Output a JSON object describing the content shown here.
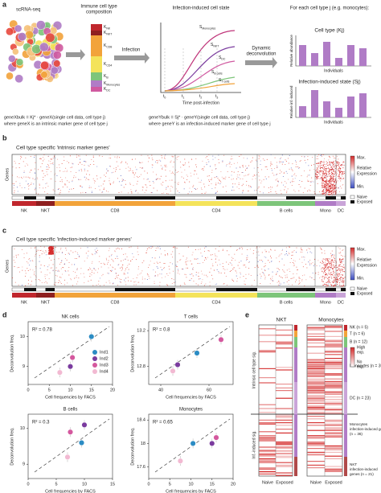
{
  "panel_labels": [
    "a",
    "b",
    "c",
    "d",
    "e"
  ],
  "panel_a": {
    "scrna": "scRNA-seq",
    "composition_title": [
      "Immune cell type",
      "composition"
    ],
    "state_title": "Infection-induced cell state",
    "per_type_title": "For each cell type j (e.g. monocytes):",
    "infection": "Infection",
    "deconv": [
      "Dynamic",
      "deconvolution"
    ],
    "k_labels": [
      {
        "main": "K",
        "sub": "NK"
      },
      {
        "main": "K",
        "sub": "NKT"
      },
      {
        "main": "K",
        "sub": "CD8"
      },
      {
        "main": "K",
        "sub": "CD4"
      },
      {
        "main": "K",
        "sub": "B"
      },
      {
        "main": "K",
        "sub": "Monocytes"
      },
      {
        "main": "K",
        "sub": "DC"
      }
    ],
    "s_labels": [
      {
        "main": "S",
        "sub": "Monocytes"
      },
      {
        "main": "S",
        "sub": "NKT"
      },
      {
        "main": "S",
        "sub": "DC"
      },
      {
        "main": "S",
        "sub": "B cells"
      },
      {
        "main": "S",
        "sub": "T cells"
      }
    ],
    "time_ticks": [
      {
        "main": "t",
        "sub": "0"
      },
      {
        "main": "t",
        "sub": "1"
      },
      {
        "main": "t",
        "sub": "2"
      },
      {
        "main": "t",
        "sub": "3"
      }
    ],
    "time_label": "Time post-infection",
    "bar1_title": "Cell type (Kj)",
    "bar1_ylabel": "Relative abundance",
    "individuals": "Individuals",
    "bar2_title": "Infection-induced state (Sj)",
    "bar2_ylabel": "Relative inf.-induced",
    "formula1": "geneXbulk = Kj* · geneX(single cell data, cell type j)",
    "formula1_note": "where geneX is an intrinsic marker gene of cell type j",
    "formula2": "geneYbulk = Sj* · geneY(single cell data, cell type j)",
    "formula2_note": "where geneY is an infection-induced marker gene of cell type j"
  },
  "panel_b": {
    "title": "Cell type specific 'intrinsic marker genes'",
    "genes": "Genes",
    "max": "Max.",
    "rel": [
      "Relative",
      "Expression"
    ],
    "min": "Min.",
    "naive": "Naive",
    "exposed": "Exposed",
    "cell_types": [
      "NK",
      "NKT",
      "CD8",
      "CD4",
      "B cells",
      "Mono",
      "DC"
    ]
  },
  "panel_c": {
    "title": "Cell type specific 'infection-induced marker genes'",
    "genes": "Genes",
    "max": "Max.",
    "rel": [
      "Relative",
      "Expression"
    ],
    "min": "Min.",
    "naive": "Naive",
    "exposed": "Exposed",
    "cell_types": [
      "NK",
      "NKT",
      "CD8",
      "CD4",
      "B cells",
      "Mono",
      "DC"
    ]
  },
  "panel_d": {
    "legend": [
      {
        "name": "Ind1",
        "color": "#2b8cc4"
      },
      {
        "name": "Ind2",
        "color": "#7a3b9e"
      },
      {
        "name": "Ind3",
        "color": "#d4589e"
      },
      {
        "name": "Ind4",
        "color": "#f2b9d2"
      }
    ]
  },
  "chart_data": [
    {
      "type": "scatter",
      "title": "NK cells",
      "annotation": "R² = 0.78",
      "xlabel": "Cell frequencies by FACS",
      "ylabel": "Deconvolution freq.",
      "x": [
        15,
        10,
        10.5,
        7.5
      ],
      "values": [
        10,
        9,
        9.3,
        8.8
      ],
      "xlim": [
        0,
        20
      ],
      "xticks": [
        0,
        5,
        10,
        15,
        20
      ],
      "ylim": [
        8.4,
        10.5
      ],
      "yticks": [
        9,
        10
      ]
    },
    {
      "type": "scatter",
      "title": "T cells",
      "annotation": "R² = 0.8",
      "xlabel": "Cell frequencies by FACS",
      "ylabel": "Deconvolution freq.",
      "x": [
        55,
        47,
        65,
        45
      ],
      "values": [
        12.95,
        12.82,
        13.1,
        12.75
      ],
      "xlim": [
        35,
        70
      ],
      "xticks": [
        40,
        60
      ],
      "ylim": [
        12.6,
        13.3
      ],
      "yticks": [
        12.8,
        13.2
      ]
    },
    {
      "type": "scatter",
      "title": "B cells",
      "annotation": "R² = 0.3",
      "xlabel": "Cell frequencies by FACS",
      "ylabel": "Deconvolution freq.",
      "x": [
        9.5,
        10,
        7.5,
        7
      ],
      "values": [
        9.6,
        10.1,
        9.9,
        9.2
      ],
      "xlim": [
        0,
        15
      ],
      "xticks": [
        0,
        5,
        10,
        15
      ],
      "ylim": [
        8.6,
        10.4
      ],
      "yticks": [
        9,
        10
      ]
    },
    {
      "type": "scatter",
      "title": "Monocytes",
      "annotation": "R² = 0.65",
      "xlabel": "Cell frequencies by FACS",
      "ylabel": "Deconvolution freq.",
      "x": [
        10.5,
        15,
        16,
        7.5
      ],
      "values": [
        18,
        18,
        18.1,
        17.7
      ],
      "xlim": [
        0,
        20
      ],
      "xticks": [
        0,
        5,
        10,
        15,
        20
      ],
      "ylim": [
        17.4,
        18.5
      ],
      "yticks": [
        17.6,
        18,
        18.4
      ]
    }
  ],
  "panel_e": {
    "nkt": "NKT",
    "monocytes": "Monocytes",
    "intrinsic": "Intrinsic cell type sig.",
    "induced": "Inf.-induced sig.",
    "naive": "Naive",
    "exposed": "Exposed",
    "high": [
      "High",
      "exp."
    ],
    "no": [
      "No",
      "exp."
    ],
    "groups": [
      "NK (n = 5)",
      "T (n = 6)",
      "B (n = 12)",
      "Monocytes (n = 35)",
      "DC (n = 23)",
      "Monocytes infection-induced genes (n = 36)",
      "NKT infection-induced genes (n = 21)"
    ]
  }
}
